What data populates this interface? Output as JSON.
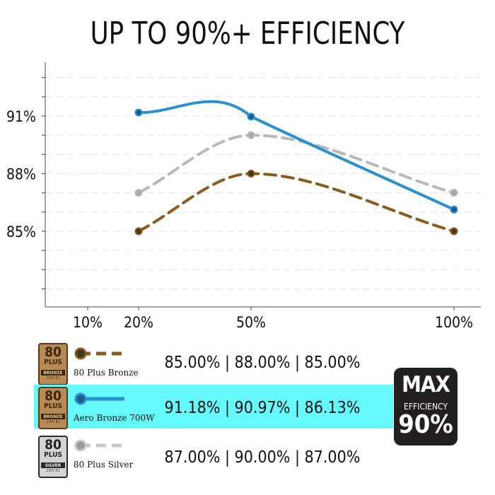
{
  "chart_data": {
    "type": "line",
    "title": "UP TO 90%+ EFFICIENCY",
    "x_ticks": [
      "10%",
      "20%",
      "50%",
      "100%"
    ],
    "x": [
      20,
      50,
      100
    ],
    "y_ticks": [
      "85%",
      "88%",
      "91%"
    ],
    "ylim": [
      81,
      93
    ],
    "grid": true,
    "series": [
      {
        "name": "80 Plus Bronze",
        "values": [
          85.0,
          88.0,
          85.0
        ],
        "color": "#8b5a1f",
        "style": "dashed",
        "values_label": "85.00% | 88.00% | 85.00%",
        "badge": "bronze"
      },
      {
        "name": "Aero Bronze 700W",
        "values": [
          91.18,
          90.97,
          86.13
        ],
        "color": "#2b8fd0",
        "style": "solid",
        "values_label": "91.18% | 90.97% | 86.13%",
        "badge": "bronze",
        "highlight": "#66f9fb"
      },
      {
        "name": "80 Plus Silver",
        "values": [
          87.0,
          90.0,
          87.0
        ],
        "color": "#b9b9b9",
        "style": "dashed",
        "values_label": "87.00% | 90.00% | 87.00%",
        "badge": "silver"
      }
    ]
  },
  "badges": {
    "bronze": {
      "num": "80",
      "plus": "PLUS",
      "tier": "BRONZE",
      "sub": "230V EU"
    },
    "silver": {
      "num": "80",
      "plus": "PLUS",
      "tier": "SILVER",
      "sub": "230V EU"
    }
  },
  "max_badge": {
    "line1": "MAX",
    "line2": "EFFICIENCY",
    "line3": "90%"
  }
}
